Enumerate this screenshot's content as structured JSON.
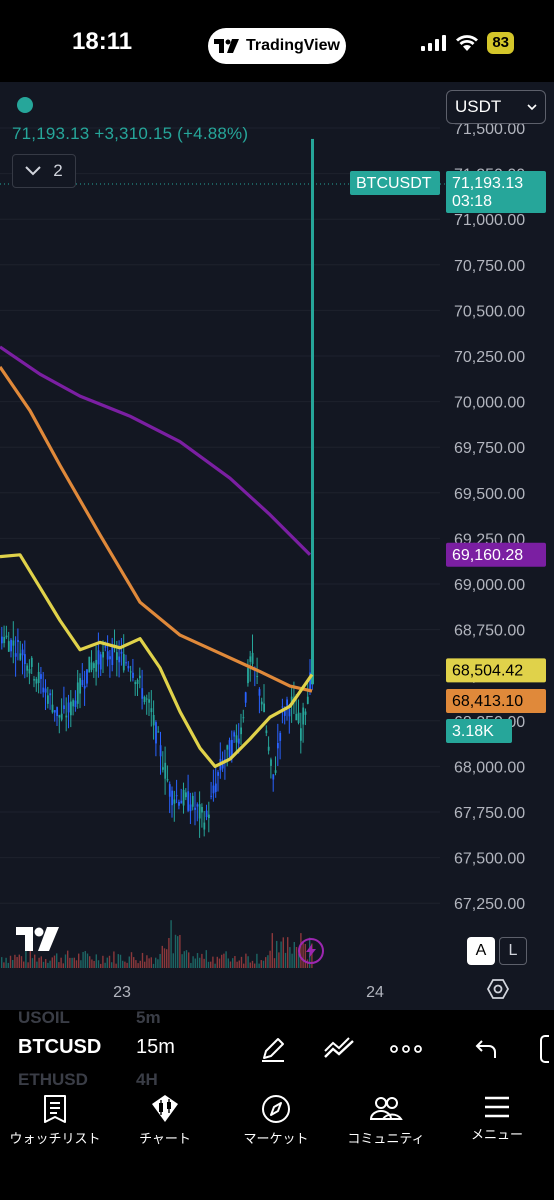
{
  "status_bar": {
    "time": "18:11",
    "app_pill": "TradingView",
    "battery": "83"
  },
  "header": {
    "price_change": "71,193.13 +3,310.15 (+4.88%)",
    "indicator_count": "2",
    "currency": "USDT"
  },
  "axis": {
    "price_ticks": [
      "71,500.00",
      "71,250.00",
      "71,000.00",
      "70,750.00",
      "70,500.00",
      "70,250.00",
      "70,000.00",
      "69,750.00",
      "69,500.00",
      "69,250.00",
      "69,000.00",
      "68,750.00",
      "68,500.00",
      "68,250.00",
      "68,000.00",
      "67,750.00",
      "67,500.00",
      "67,250.00"
    ],
    "time_ticks": [
      "23",
      "24"
    ]
  },
  "labels": {
    "symbol_tag": "BTCUSDT",
    "last_price": "71,193.13",
    "countdown": "03:18",
    "purple_ma": "69,160.28",
    "yellow_ma": "68,504.42",
    "orange_ma": "68,413.10",
    "volume": "3.18K"
  },
  "colors": {
    "up": "#26a69a",
    "candle_blue": "#2962ff",
    "purple": "#7b1fa2",
    "orange": "#e0893a",
    "yellow": "#e0d24a",
    "background": "#131722"
  },
  "chart_controls": {
    "auto": "A",
    "log": "L"
  },
  "symbol_bar": {
    "symbol": "BTCUSD",
    "interval": "15m",
    "ghost_above_symbol": "USOIL",
    "ghost_above_interval": "5m",
    "ghost_below_symbol": "ETHUSD",
    "ghost_below_interval": "4H"
  },
  "nav": [
    {
      "label": "ウォッチリスト",
      "icon": "watchlist-icon"
    },
    {
      "label": "チャート",
      "icon": "chart-icon"
    },
    {
      "label": "マーケット",
      "icon": "compass-icon"
    },
    {
      "label": "コミュニティ",
      "icon": "community-icon"
    },
    {
      "label": "メニュー",
      "icon": "menu-icon"
    }
  ]
}
